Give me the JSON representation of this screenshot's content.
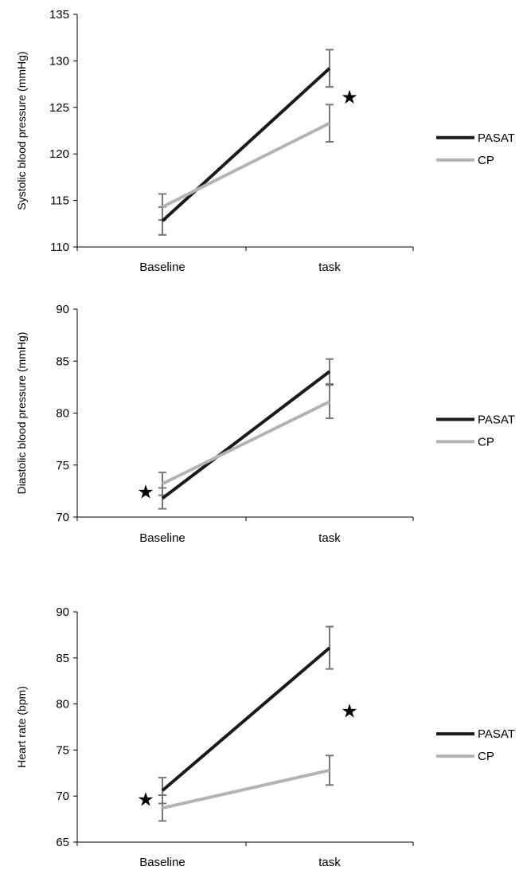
{
  "chart_data": [
    {
      "type": "line",
      "categories": [
        "Baseline",
        "task"
      ],
      "ylabel": "Systolic blood pressure (mmHg)",
      "ylim": [
        110,
        135
      ],
      "yticks": [
        110,
        115,
        120,
        125,
        130,
        135
      ],
      "series": [
        {
          "name": "PASAT",
          "values": [
            112.8,
            129.2
          ],
          "errors": [
            1.5,
            2.0
          ],
          "color": "#1a1a1a"
        },
        {
          "name": "CP",
          "values": [
            114.3,
            123.3
          ],
          "errors": [
            1.4,
            2.0
          ],
          "color": "#b3b3b3"
        }
      ],
      "annotations": [
        {
          "symbol": "★",
          "x": "task",
          "y": 126.2
        }
      ],
      "legend": "right",
      "grid": false
    },
    {
      "type": "line",
      "categories": [
        "Baseline",
        "task"
      ],
      "ylabel": "Diastolic blood pressure (mmHg)",
      "ylim": [
        70,
        90
      ],
      "yticks": [
        70,
        75,
        80,
        85,
        90
      ],
      "series": [
        {
          "name": "PASAT",
          "values": [
            71.8,
            84.0
          ],
          "errors": [
            1.0,
            1.2
          ],
          "color": "#1a1a1a"
        },
        {
          "name": "CP",
          "values": [
            73.2,
            81.1
          ],
          "errors": [
            1.1,
            1.6
          ],
          "color": "#b3b3b3"
        }
      ],
      "annotations": [
        {
          "symbol": "★",
          "x": "Baseline",
          "y": 72.5
        }
      ],
      "legend": "right",
      "grid": false
    },
    {
      "type": "line",
      "categories": [
        "Baseline",
        "task"
      ],
      "ylabel": "Heart rate (bpm)",
      "ylim": [
        65,
        90
      ],
      "yticks": [
        65,
        70,
        75,
        80,
        85,
        90
      ],
      "series": [
        {
          "name": "PASAT",
          "values": [
            70.6,
            86.1
          ],
          "errors": [
            1.4,
            2.3
          ],
          "color": "#1a1a1a"
        },
        {
          "name": "CP",
          "values": [
            68.7,
            72.8
          ],
          "errors": [
            1.4,
            1.6
          ],
          "color": "#b3b3b3"
        }
      ],
      "annotations": [
        {
          "symbol": "★",
          "x": "Baseline",
          "y": 69.7
        },
        {
          "symbol": "★",
          "x": "task",
          "y": 79.3
        }
      ],
      "legend": "right",
      "grid": false
    }
  ]
}
